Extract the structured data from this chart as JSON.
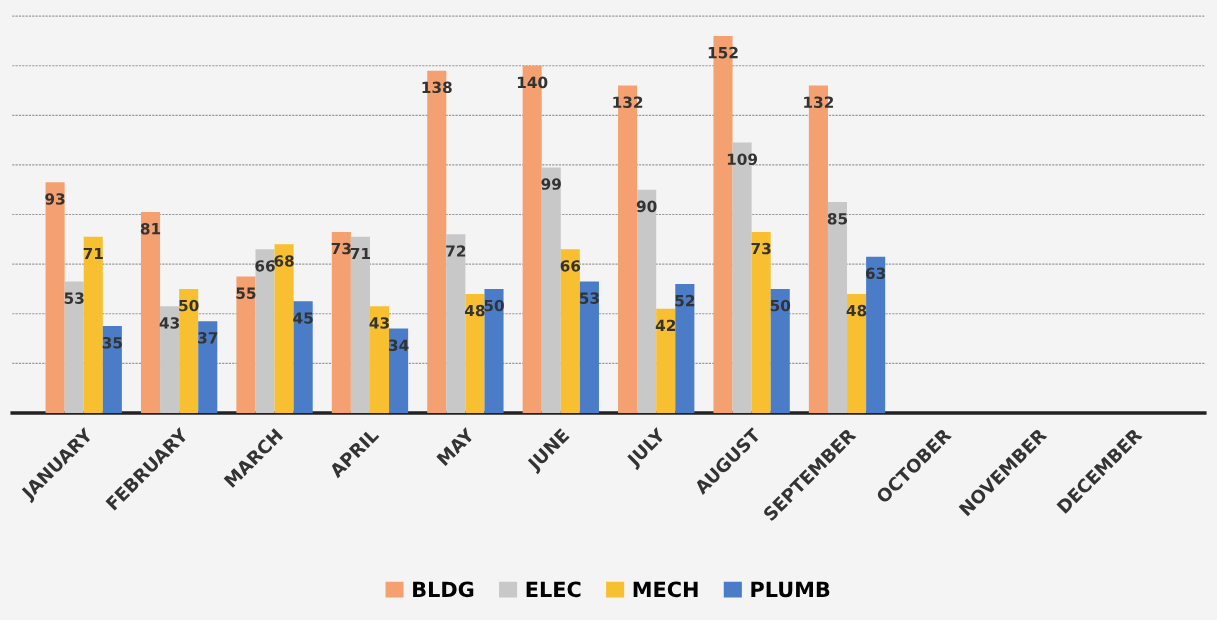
{
  "chart_data": {
    "type": "bar",
    "categories": [
      "JANUARY",
      "FEBRUARY",
      "MARCH",
      "APRIL",
      "MAY",
      "JUNE",
      "JULY",
      "AUGUST",
      "SEPTEMBER",
      "OCTOBER",
      "NOVEMBER",
      "DECEMBER"
    ],
    "series": [
      {
        "name": "BLDG",
        "color": "#f4a070",
        "values": [
          93,
          81,
          55,
          73,
          138,
          140,
          132,
          152,
          132,
          null,
          null,
          null
        ]
      },
      {
        "name": "ELEC",
        "color": "#c8c8c8",
        "values": [
          53,
          43,
          66,
          71,
          72,
          99,
          90,
          109,
          85,
          null,
          null,
          null
        ]
      },
      {
        "name": "MECH",
        "color": "#f8c030",
        "values": [
          71,
          50,
          68,
          43,
          48,
          66,
          42,
          73,
          48,
          null,
          null,
          null
        ]
      },
      {
        "name": "PLUMB",
        "color": "#4a7cc8",
        "values": [
          35,
          37,
          45,
          34,
          50,
          53,
          52,
          50,
          63,
          null,
          null,
          null
        ]
      }
    ],
    "ylim": [
      0,
      165
    ],
    "yticks": [
      {
        "value": 0,
        "label": null
      },
      {
        "value": 20,
        "label": null
      },
      {
        "value": 40,
        "label": null
      },
      {
        "value": 60,
        "label": null
      },
      {
        "value": 80,
        "label": null
      },
      {
        "value": 100,
        "label": null
      },
      {
        "value": 120,
        "label": null
      },
      {
        "value": 140,
        "label": null
      },
      {
        "value": 160,
        "label": null
      }
    ],
    "tick_labels": "x",
    "grid": "y",
    "legend": "bottom",
    "data_labels": true
  }
}
